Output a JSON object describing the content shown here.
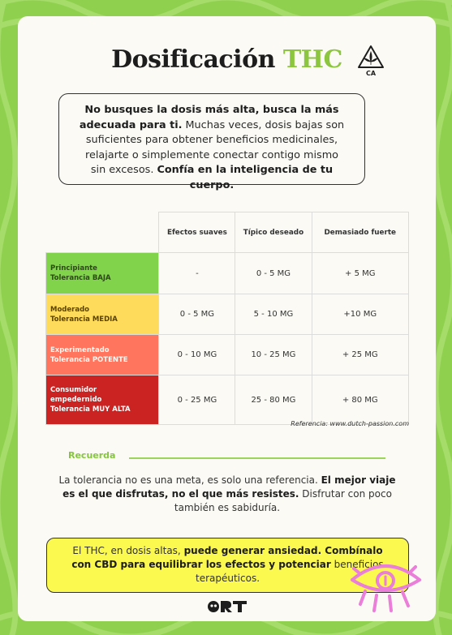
{
  "title": {
    "prefix": "Dosificación",
    "highlight": "THC"
  },
  "badge": {
    "text": "CA",
    "icon": "cannabis-leaf-triangle-icon"
  },
  "intro": {
    "bold1": "No busques la dosis más alta, busca la más adecuada para ti.",
    "normal": " Muchas veces, dosis bajas son suficientes para obtener beneficios medicinales, relajarte o simplemente conectar contigo mismo sin excesos. ",
    "bold2": "Confía en la inteligencia de tu cuerpo."
  },
  "table": {
    "headers": [
      "Efectos suaves",
      "Típico deseado",
      "Demasiado fuerte"
    ],
    "rows": [
      {
        "level": "Principiante",
        "tolerance": "Tolerancia BAJA",
        "values": [
          "-",
          "0 - 5 MG",
          "+ 5 MG"
        ],
        "color": "#82d34c"
      },
      {
        "level": "Moderado",
        "tolerance": "Tolerancia MEDIA",
        "values": [
          "0 - 5 MG",
          "5 - 10 MG",
          "+10 MG"
        ],
        "color": "#fedb5a"
      },
      {
        "level": "Experimentado",
        "tolerance": "Tolerancia POTENTE",
        "values": [
          "0 - 10 MG",
          "10 - 25 MG",
          "+ 25 MG"
        ],
        "color": "#ff755e"
      },
      {
        "level": "Consumidor empedernido",
        "tolerance": "Tolerancia MUY ALTA",
        "values": [
          "0 - 25 MG",
          "25 - 80 MG",
          "+ 80 MG"
        ],
        "color": "#cb2322"
      }
    ]
  },
  "reference": "Referencia: www.dutch-passion.com",
  "recuerda": {
    "label": "Recuerda",
    "text1": "La tolerancia no es una meta, es solo una referencia. ",
    "bold": "El mejor viaje es el que disfrutas, no el que más resistes.",
    "text2": " Disfrutar con poco también es sabiduría."
  },
  "warning": {
    "t1": "El THC, en dosis altas, ",
    "b1": "puede generar ansiedad. Combínalo con CBD para equilibrar los efectos y potenciar",
    "t2": " beneficios terapéuticos."
  },
  "colors": {
    "background": "#8fd14f",
    "accent": "#8cc63f",
    "warning": "#fbf84f"
  },
  "logo": "ORT"
}
